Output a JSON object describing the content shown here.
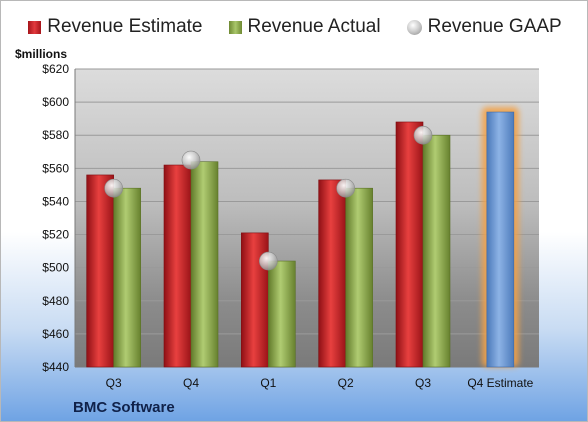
{
  "legend": {
    "estimate": "Revenue Estimate",
    "actual": "Revenue Actual",
    "gaap": "Revenue GAAP"
  },
  "unit_label": "$millions",
  "company": "BMC Software",
  "colors": {
    "estimate": "#d42a2f",
    "actual": "#94b453",
    "gaap": "#c0c0c0",
    "estimate_future": "#6f98d2",
    "highlight": "#f2a24a"
  },
  "chart_data": {
    "type": "bar",
    "categories": [
      "Q3",
      "Q4",
      "Q1",
      "Q2",
      "Q3",
      "Q4 Estimate"
    ],
    "series": [
      {
        "name": "Revenue Estimate",
        "values": [
          556,
          562,
          521,
          553,
          588,
          594
        ]
      },
      {
        "name": "Revenue Actual",
        "values": [
          548,
          564,
          504,
          548,
          580,
          null
        ]
      },
      {
        "name": "Revenue GAAP",
        "values": [
          548,
          565,
          504,
          548,
          580,
          null
        ]
      }
    ],
    "ylabel": "$millions",
    "ylim": [
      440,
      620
    ],
    "yticks": [
      440,
      460,
      480,
      500,
      520,
      540,
      560,
      580,
      600,
      620
    ],
    "ytick_labels": [
      "$440",
      "$460",
      "$480",
      "$500",
      "$520",
      "$540",
      "$560",
      "$580",
      "$600",
      "$620"
    ],
    "grid": true,
    "legend_position": "top"
  }
}
